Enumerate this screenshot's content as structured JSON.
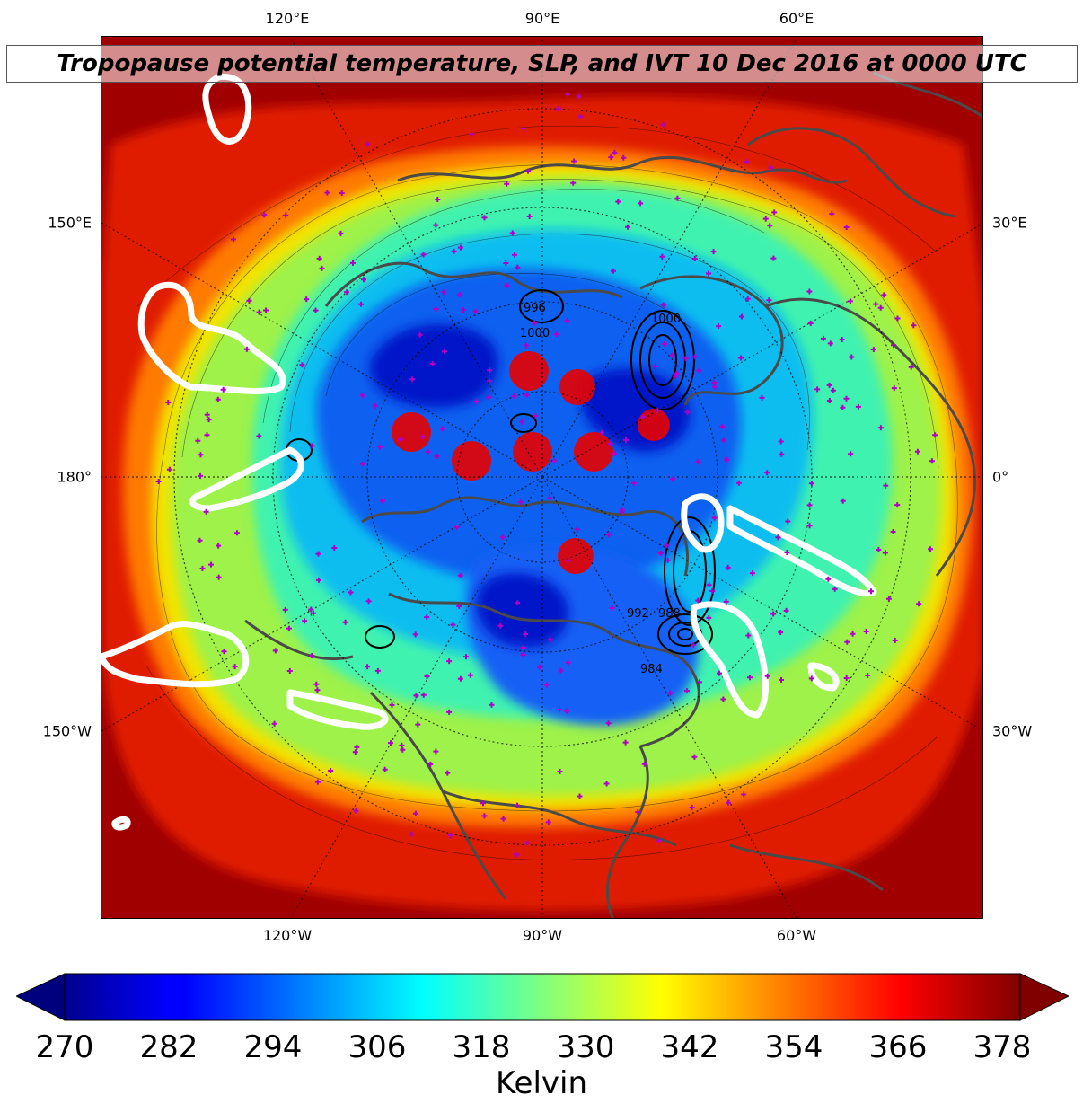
{
  "title": "Tropopause potential temperature, SLP, and IVT 10 Dec 2016 at 0000 UTC",
  "map": {
    "projection": "north-polar-stereographic",
    "fields": [
      "tropopause potential temperature (filled)",
      "SLP (black contours)",
      "IVT (white contours)"
    ],
    "longitude_labels": {
      "top": [
        "120°E",
        "90°E",
        "60°E"
      ],
      "bottom": [
        "120°W",
        "90°W",
        "60°W"
      ],
      "left": [
        "150°E",
        "180°",
        "150°W"
      ],
      "right": [
        "30°E",
        "0°",
        "30°W"
      ]
    },
    "slp_contour_labels": [
      "996",
      "1000",
      "1000",
      "992",
      "988",
      "984"
    ],
    "colors": {
      "coast": "#4a4a4a",
      "station_marker": "#b000c8",
      "ivt_contour": "#ffffff",
      "slp_contour": "#000000"
    }
  },
  "colorbar": {
    "label": "Kelvin",
    "ticks": [
      "270",
      "282",
      "294",
      "306",
      "318",
      "330",
      "342",
      "354",
      "366",
      "378"
    ],
    "range": [
      270,
      378
    ],
    "colormap": "jet",
    "extend": "both"
  }
}
